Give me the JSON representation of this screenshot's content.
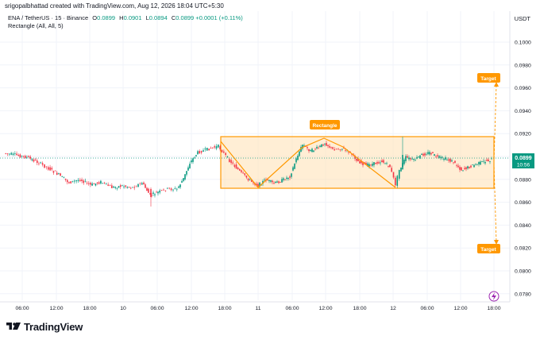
{
  "topbar": {
    "credit": "srigopalbhattad created with TradingView.com, Aug 12, 2026 18:04 UTC+5:30"
  },
  "legend": {
    "symbol": "ENA / TetherUS · 15 · Binance",
    "open_label": "O",
    "open": "0.0899",
    "high_label": "H",
    "high": "0.0901",
    "low_label": "L",
    "low": "0.0894",
    "close_label": "C",
    "close": "0.0899",
    "change": "+0.0001 (+0.11%)",
    "indicator": "Rectangle (All, All, 5)"
  },
  "axis": {
    "currency": "USDT",
    "y_ticks": [
      "0.1000",
      "0.0980",
      "0.0960",
      "0.0940",
      "0.0920",
      "0.0900",
      "0.0880",
      "0.0860",
      "0.0840",
      "0.0820",
      "0.0800",
      "0.0780"
    ],
    "x_ticks": [
      "06:00",
      "12:00",
      "18:00",
      "10",
      "06:00",
      "12:00",
      "18:00",
      "11",
      "06:00",
      "12:00",
      "18:00",
      "12",
      "06:00",
      "12:00",
      "18:00"
    ],
    "price_tag": "0.0899",
    "price_tag_time": "10:56"
  },
  "annotations": {
    "rectangle_label": "Rectangle",
    "target_up_label": "Target",
    "target_down_label": "Target"
  },
  "colors": {
    "up": "#089981",
    "down": "#f23645",
    "pattern": "#ff9800",
    "rect_fill": "#ffe0b2",
    "price_line": "#089981"
  },
  "footer": {
    "logo_text": "TradingView",
    "logo_icon": "tradingview-logo-icon"
  }
}
